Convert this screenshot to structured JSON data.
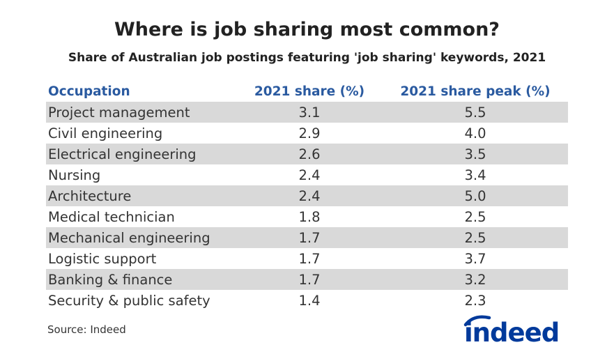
{
  "colors": {
    "header_text": "#2a5aa0",
    "row_shade": "#d9d9d9",
    "logo_blue": "#003a9b"
  },
  "chart_data": {
    "type": "table",
    "title": "Where is job sharing most common?",
    "subtitle": "Share of Australian job postings featuring 'job sharing' keywords, 2021",
    "columns": [
      "Occupation",
      "2021 share (%)",
      "2021 share peak (%)"
    ],
    "rows": [
      {
        "occupation": "Project management",
        "share": "3.1",
        "peak": "5.5"
      },
      {
        "occupation": "Civil engineering",
        "share": "2.9",
        "peak": "4.0"
      },
      {
        "occupation": "Electrical engineering",
        "share": "2.6",
        "peak": "3.5"
      },
      {
        "occupation": "Nursing",
        "share": "2.4",
        "peak": "3.4"
      },
      {
        "occupation": "Architecture",
        "share": "2.4",
        "peak": "5.0"
      },
      {
        "occupation": "Medical technician",
        "share": "1.8",
        "peak": "2.5"
      },
      {
        "occupation": "Mechanical engineering",
        "share": "1.7",
        "peak": "2.5"
      },
      {
        "occupation": "Logistic support",
        "share": "1.7",
        "peak": "3.7"
      },
      {
        "occupation": "Banking & finance",
        "share": "1.7",
        "peak": "3.2"
      },
      {
        "occupation": "Security & public safety",
        "share": "1.4",
        "peak": "2.3"
      }
    ],
    "source": "Source: Indeed",
    "logo_text": "indeed"
  }
}
